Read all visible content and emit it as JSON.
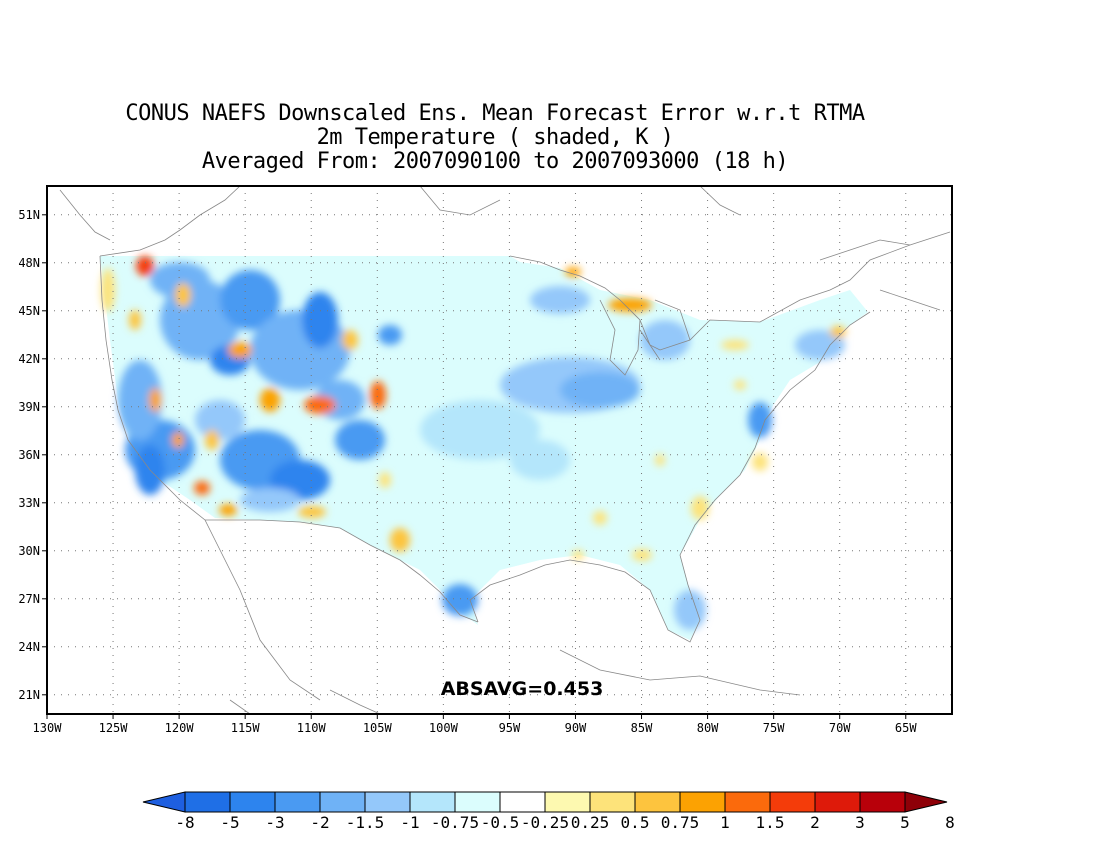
{
  "title": {
    "line1": "CONUS NAEFS Downscaled Ens. Mean Forecast Error w.r.t RTMA",
    "line2": "2m Temperature ( shaded, K )",
    "line3": "Averaged From: 2007090100 to 2007093000 (18 h)"
  },
  "annotation": "ABSAVG=0.453",
  "lat_labels": [
    "51N",
    "48N",
    "45N",
    "42N",
    "39N",
    "36N",
    "33N",
    "30N",
    "27N",
    "24N",
    "21N"
  ],
  "lat_values": [
    51,
    48,
    45,
    42,
    39,
    36,
    33,
    30,
    27,
    24,
    21
  ],
  "lon_labels": [
    "130W",
    "125W",
    "120W",
    "115W",
    "110W",
    "105W",
    "100W",
    "95W",
    "90W",
    "85W",
    "80W",
    "75W",
    "70W",
    "65W"
  ],
  "lon_values": [
    -130,
    -125,
    -120,
    -115,
    -110,
    -105,
    -100,
    -95,
    -90,
    -85,
    -80,
    -75,
    -70,
    -65
  ],
  "extent": {
    "lon_min": -130,
    "lon_max": -61.5,
    "lat_min": 19.8,
    "lat_max": 52.8
  },
  "colorbar": {
    "labels": [
      "-8",
      "-5",
      "-3",
      "-2",
      "-1.5",
      "-1",
      "-0.75",
      "-0.5",
      "-0.25",
      "0.25",
      "0.5",
      "0.75",
      "1",
      "1.5",
      "2",
      "3",
      "5",
      "8"
    ],
    "colors": [
      "#1e5fe0",
      "#1f6fe6",
      "#2d84ee",
      "#4a9af2",
      "#6fb2f6",
      "#94c8fa",
      "#b4e6fb",
      "#dbfdfd",
      "#ffffff",
      "#fdf9b0",
      "#fde37a",
      "#fdc43e",
      "#fca202",
      "#fb6a0c",
      "#f43c0a",
      "#de1a0a",
      "#b8000a",
      "#8e0008"
    ]
  },
  "field": {
    "description_colors": {
      "blue_strong": "#2d84ee",
      "blue": "#4a9af2",
      "blue_light": "#94c8fa",
      "cyan": "#b4e6fb",
      "cyan_pale": "#dbfdfd",
      "yellow": "#fde37a",
      "orange": "#fca202",
      "red": "#f43c0a"
    }
  }
}
